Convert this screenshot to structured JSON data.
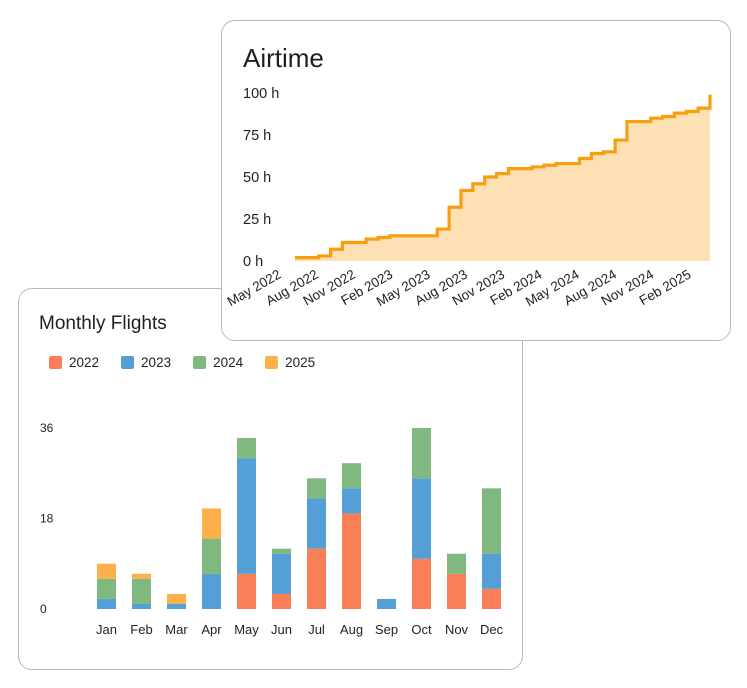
{
  "colors": {
    "y2022": "#fb7f56",
    "y2023": "#549fd5",
    "y2024": "#7fb97f",
    "y2025": "#fbb04b",
    "airtime_line": "#f79f0f",
    "airtime_fill": "#fde0b4"
  },
  "chart_data": [
    {
      "type": "area",
      "title": "Airtime",
      "y_unit": "h",
      "ylim": [
        0,
        100
      ],
      "y_ticks": [
        "100 h",
        "75 h",
        "50 h",
        "25 h",
        "0 h"
      ],
      "x_ticks": [
        "May 2022",
        "Aug 2022",
        "Nov 2022",
        "Feb 2023",
        "May 2023",
        "Aug 2023",
        "Nov 2023",
        "Feb 2024",
        "May 2024",
        "Aug 2024",
        "Nov 2024",
        "Feb 2025"
      ],
      "step": true,
      "grid": false,
      "legend": "none",
      "x_start": "2022-04",
      "x_end": "2025-03",
      "points": [
        {
          "x": "2022-04",
          "y": 2
        },
        {
          "x": "2022-06",
          "y": 3
        },
        {
          "x": "2022-07",
          "y": 7
        },
        {
          "x": "2022-08",
          "y": 11
        },
        {
          "x": "2022-10",
          "y": 13
        },
        {
          "x": "2022-11",
          "y": 14
        },
        {
          "x": "2022-12",
          "y": 15
        },
        {
          "x": "2023-04",
          "y": 19
        },
        {
          "x": "2023-05",
          "y": 32
        },
        {
          "x": "2023-06",
          "y": 42
        },
        {
          "x": "2023-07",
          "y": 46
        },
        {
          "x": "2023-08",
          "y": 50
        },
        {
          "x": "2023-09",
          "y": 52
        },
        {
          "x": "2023-10",
          "y": 55
        },
        {
          "x": "2023-12",
          "y": 56
        },
        {
          "x": "2024-01",
          "y": 57
        },
        {
          "x": "2024-02",
          "y": 58
        },
        {
          "x": "2024-04",
          "y": 61
        },
        {
          "x": "2024-05",
          "y": 64
        },
        {
          "x": "2024-06",
          "y": 65
        },
        {
          "x": "2024-07",
          "y": 72
        },
        {
          "x": "2024-08",
          "y": 83
        },
        {
          "x": "2024-10",
          "y": 85
        },
        {
          "x": "2024-11",
          "y": 86
        },
        {
          "x": "2024-12",
          "y": 88
        },
        {
          "x": "2025-01",
          "y": 89
        },
        {
          "x": "2025-02",
          "y": 91
        },
        {
          "x": "2025-03",
          "y": 99
        }
      ]
    },
    {
      "type": "bar",
      "stacked": true,
      "title": "Monthly Flights",
      "categories": [
        "Jan",
        "Feb",
        "Mar",
        "Apr",
        "May",
        "Jun",
        "Jul",
        "Aug",
        "Sep",
        "Oct",
        "Nov",
        "Dec"
      ],
      "ylim": [
        0,
        36
      ],
      "y_ticks": [
        "36",
        "18",
        "0"
      ],
      "grid": false,
      "legend": "top-left",
      "series": [
        {
          "name": "2022",
          "values": [
            0,
            0,
            0,
            0,
            7,
            3,
            12,
            19,
            0,
            10,
            7,
            4
          ]
        },
        {
          "name": "2023",
          "values": [
            2,
            1,
            1,
            7,
            23,
            8,
            10,
            5,
            2,
            16,
            0,
            7
          ]
        },
        {
          "name": "2024",
          "values": [
            4,
            5,
            0,
            7,
            4,
            1,
            4,
            5,
            0,
            10,
            4,
            13
          ]
        },
        {
          "name": "2025",
          "values": [
            3,
            1,
            2,
            6,
            0,
            0,
            0,
            0,
            0,
            0,
            0,
            0
          ]
        }
      ]
    }
  ]
}
